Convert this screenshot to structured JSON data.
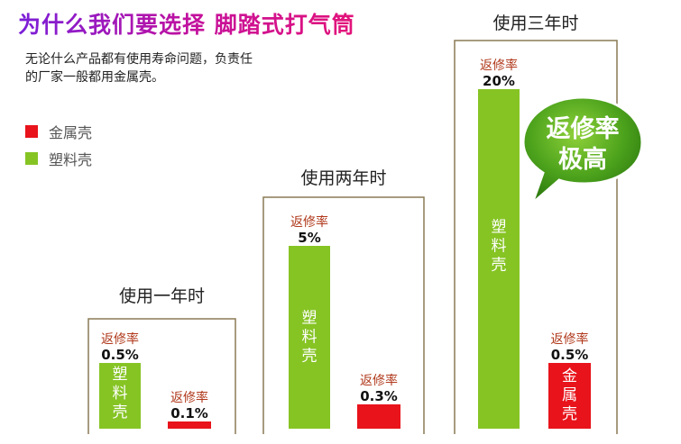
{
  "headline": "为什么我们要选择 脚踏式打气筒",
  "intro": {
    "line1": "无论什么产品都有使用寿命问题，负责任",
    "line2": "的厂家一般都用金属壳。"
  },
  "legend": [
    {
      "label": "金属壳",
      "color": "#e8131b"
    },
    {
      "label": "塑料壳",
      "color": "#86c424"
    }
  ],
  "callout": {
    "line1": "返修率",
    "line2": "极高"
  },
  "chart_data": {
    "type": "bar",
    "categories": [
      "使用一年时",
      "使用两年时",
      "使用三年时"
    ],
    "unit": "%",
    "series": [
      {
        "name": "塑料壳",
        "color": "#86c424",
        "values": [
          0.5,
          5,
          20
        ],
        "value_labels": [
          "0.5%",
          "5%",
          "20%"
        ],
        "bar_text": "塑料壳",
        "caption": "返修率"
      },
      {
        "name": "金属壳",
        "color": "#e8131b",
        "values": [
          0.1,
          0.3,
          0.5
        ],
        "value_labels": [
          "0.1%",
          "0.3%",
          "0.5%"
        ],
        "bar_text": "金属壳",
        "caption": "返修率"
      }
    ]
  }
}
